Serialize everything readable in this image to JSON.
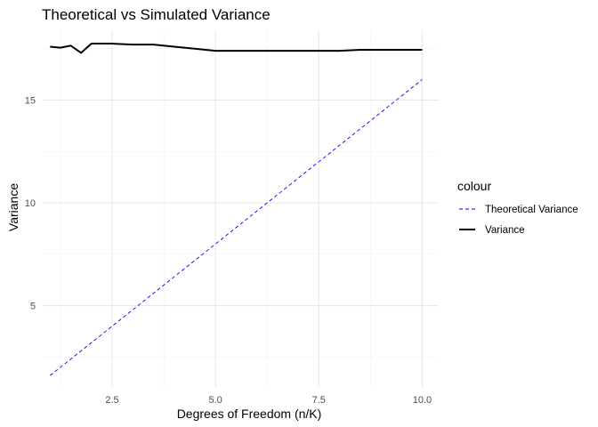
{
  "chart_data": {
    "type": "line",
    "title": "Theoretical vs Simulated Variance",
    "xlabel": "Degrees of Freedom (n/K)",
    "ylabel": "Variance",
    "xlim": [
      0.8,
      10.4
    ],
    "ylim": [
      1.0,
      18.4
    ],
    "x_ticks": [
      2.5,
      5.0,
      7.5,
      10.0
    ],
    "x_tick_labels": [
      "2.5",
      "5.0",
      "7.5",
      "10.0"
    ],
    "y_ticks": [
      5,
      10,
      15
    ],
    "y_tick_labels": [
      "5",
      "10",
      "15"
    ],
    "grid": true,
    "legend": {
      "title": "colour",
      "position": "right",
      "entries": [
        {
          "label": "Theoretical Variance",
          "color": "#0000ff",
          "style": "dashed"
        },
        {
          "label": "Variance",
          "color": "#000000",
          "style": "solid"
        }
      ]
    },
    "series": [
      {
        "name": "Theoretical Variance",
        "color": "#0000ff",
        "style": "dashed",
        "x": [
          1.0,
          10.0
        ],
        "y": [
          1.6,
          16.0
        ]
      },
      {
        "name": "Variance",
        "color": "#000000",
        "style": "solid",
        "x": [
          1.0,
          1.25,
          1.5,
          1.75,
          2.0,
          2.5,
          3.0,
          3.5,
          4.0,
          4.5,
          5.0,
          5.5,
          6.0,
          6.5,
          7.0,
          7.5,
          8.0,
          8.5,
          9.0,
          9.5,
          10.0
        ],
        "y": [
          17.6,
          17.55,
          17.65,
          17.3,
          17.75,
          17.75,
          17.7,
          17.7,
          17.6,
          17.5,
          17.4,
          17.4,
          17.4,
          17.4,
          17.4,
          17.4,
          17.4,
          17.45,
          17.45,
          17.45,
          17.45
        ]
      }
    ]
  }
}
